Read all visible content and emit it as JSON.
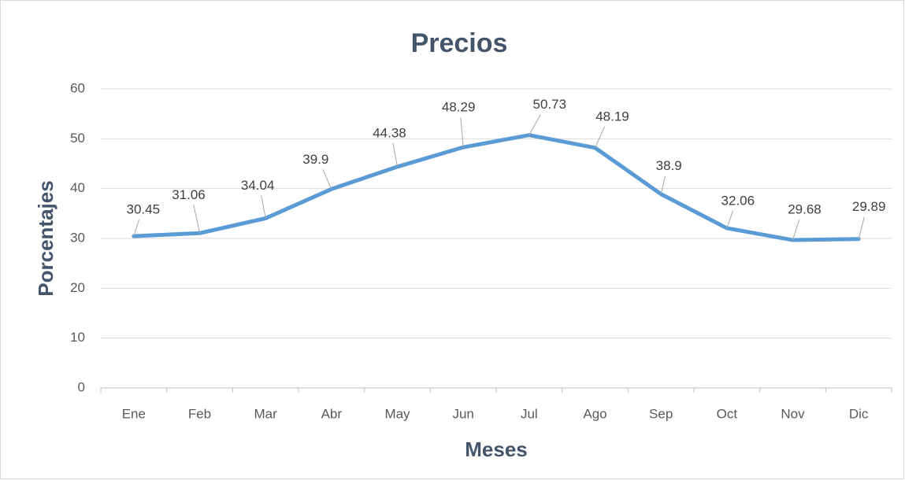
{
  "chart_data": {
    "type": "line",
    "title": "Precios",
    "x_label": "Meses",
    "y_label": "Porcentajes",
    "categories": [
      "Ene",
      "Feb",
      "Mar",
      "Abr",
      "May",
      "Jun",
      "Jul",
      "Ago",
      "Sep",
      "Oct",
      "Nov",
      "Dic"
    ],
    "series": [
      {
        "name": "Precios",
        "color": "#5b9bd5",
        "values": [
          30.45,
          31.06,
          34.04,
          39.9,
          44.38,
          48.29,
          50.73,
          48.19,
          38.9,
          32.06,
          29.68,
          29.89
        ]
      }
    ],
    "ylim": [
      0,
      60
    ],
    "yticks": [
      0,
      10,
      20,
      30,
      40,
      50,
      60
    ],
    "grid": true,
    "legend": false
  }
}
